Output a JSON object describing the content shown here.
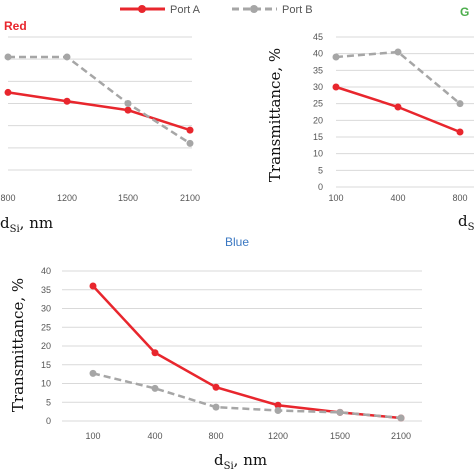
{
  "legend": {
    "port_a": "Port A",
    "port_b": "Port B"
  },
  "colors": {
    "port_a": "#e8262d",
    "port_b": "#a6a6a6",
    "red_title": "#e8262d",
    "green_title": "#4cae4c",
    "blue_title": "#3b78c2"
  },
  "chart_data": [
    {
      "type": "line",
      "title": "Red",
      "xlabel": "d_Si, nm",
      "ylabel": "Transmittance, %",
      "categories": [
        "800",
        "1200",
        "1500",
        "2100"
      ],
      "series": [
        {
          "name": "Port A",
          "values": [
            27.5,
            25.5,
            23.5,
            19
          ]
        },
        {
          "name": "Port B",
          "values": [
            35.5,
            35.5,
            25,
            16
          ]
        }
      ],
      "ylim": [
        10,
        40
      ],
      "grid": true
    },
    {
      "type": "line",
      "title": "G",
      "xlabel": "d_Si",
      "ylabel": "Transmittance, %",
      "categories": [
        "100",
        "400",
        "800"
      ],
      "series": [
        {
          "name": "Port A",
          "values": [
            30,
            24,
            16.5
          ]
        },
        {
          "name": "Port B",
          "values": [
            39,
            40.5,
            25
          ]
        }
      ],
      "yticks": [
        "0",
        "5",
        "10",
        "15",
        "20",
        "25",
        "30",
        "35",
        "40",
        "45"
      ],
      "ylim": [
        0,
        45
      ],
      "grid": true
    },
    {
      "type": "line",
      "title": "Blue",
      "xlabel": "d_Si, nm",
      "ylabel": "Transmittance, %",
      "categories": [
        "100",
        "400",
        "800",
        "1200",
        "1500",
        "2100"
      ],
      "series": [
        {
          "name": "Port A",
          "values": [
            36,
            18.2,
            9,
            4.2,
            2.3,
            0.8
          ]
        },
        {
          "name": "Port B",
          "values": [
            12.7,
            8.7,
            3.7,
            2.8,
            2.3,
            0.8
          ]
        }
      ],
      "yticks": [
        "0",
        "5",
        "10",
        "15",
        "20",
        "25",
        "30",
        "35",
        "40"
      ],
      "ylim": [
        0,
        40
      ],
      "grid": true
    }
  ]
}
